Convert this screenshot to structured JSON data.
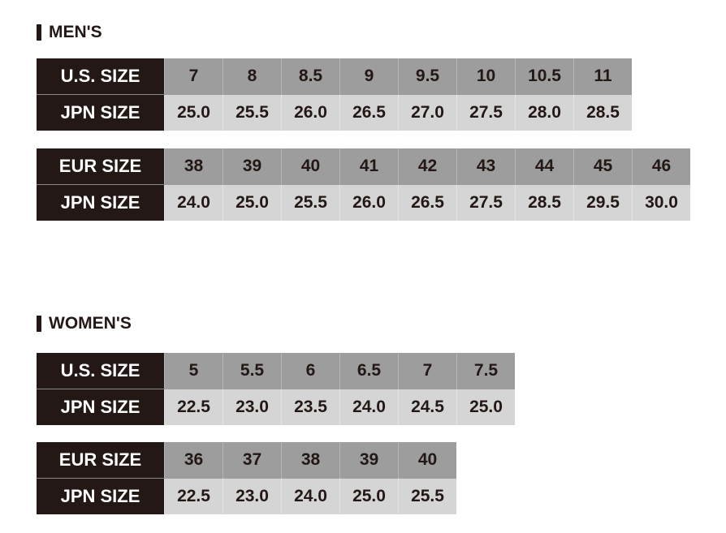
{
  "mens": {
    "title": "MEN'S",
    "us_table": {
      "row1_label": "U.S. SIZE",
      "row1": [
        "7",
        "8",
        "8.5",
        "9",
        "9.5",
        "10",
        "10.5",
        "11"
      ],
      "row2_label": "JPN SIZE",
      "row2": [
        "25.0",
        "25.5",
        "26.0",
        "26.5",
        "27.0",
        "27.5",
        "28.0",
        "28.5"
      ]
    },
    "eur_table": {
      "row1_label": "EUR SIZE",
      "row1": [
        "38",
        "39",
        "40",
        "41",
        "42",
        "43",
        "44",
        "45",
        "46"
      ],
      "row2_label": "JPN SIZE",
      "row2": [
        "24.0",
        "25.0",
        "25.5",
        "26.0",
        "26.5",
        "27.5",
        "28.5",
        "29.5",
        "30.0"
      ]
    }
  },
  "womens": {
    "title": "WOMEN'S",
    "us_table": {
      "row1_label": "U.S. SIZE",
      "row1": [
        "5",
        "5.5",
        "6",
        "6.5",
        "7",
        "7.5"
      ],
      "row2_label": "JPN SIZE",
      "row2": [
        "22.5",
        "23.0",
        "23.5",
        "24.0",
        "24.5",
        "25.0"
      ]
    },
    "eur_table": {
      "row1_label": "EUR SIZE",
      "row1": [
        "36",
        "37",
        "38",
        "39",
        "40"
      ],
      "row2_label": "JPN SIZE",
      "row2": [
        "22.5",
        "23.0",
        "24.0",
        "25.0",
        "25.5"
      ]
    }
  },
  "colors": {
    "header": "#231815",
    "top_row": "#9d9d9d",
    "bottom_row": "#d5d5d5"
  }
}
